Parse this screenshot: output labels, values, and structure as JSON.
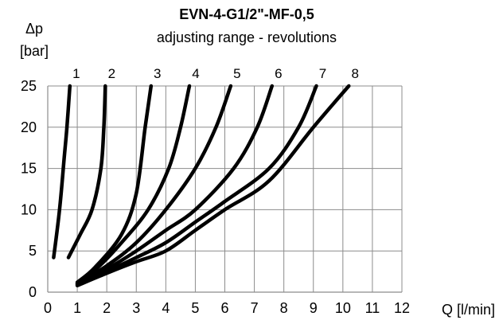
{
  "chart_data": {
    "type": "line",
    "title": "EVN-4-G1/2\"-MF-0,5",
    "subtitle": "adjusting range - revolutions",
    "xlabel": "Q [l/min]",
    "ylabel_line1": "Δp",
    "ylabel_line2": "[bar]",
    "xlim": [
      0,
      12
    ],
    "ylim": [
      0,
      25
    ],
    "xticks": [
      "0",
      "1",
      "2",
      "3",
      "4",
      "5",
      "6",
      "7",
      "8",
      "9",
      "10",
      "11",
      "12"
    ],
    "yticks": [
      "0",
      "5",
      "10",
      "15",
      "20",
      "25"
    ],
    "grid": true,
    "series": [
      {
        "name": "1",
        "points": [
          [
            0.2,
            4.2
          ],
          [
            0.4,
            10
          ],
          [
            0.55,
            16
          ],
          [
            0.65,
            20
          ],
          [
            0.75,
            25
          ]
        ]
      },
      {
        "name": "2",
        "points": [
          [
            0.7,
            4.2
          ],
          [
            1.1,
            7
          ],
          [
            1.5,
            10
          ],
          [
            1.8,
            15
          ],
          [
            1.9,
            20
          ],
          [
            1.95,
            25
          ]
        ]
      },
      {
        "name": "3",
        "points": [
          [
            1,
            1.2
          ],
          [
            1.6,
            3
          ],
          [
            2.5,
            7
          ],
          [
            3.0,
            12
          ],
          [
            3.3,
            20
          ],
          [
            3.5,
            25
          ]
        ]
      },
      {
        "name": "4",
        "points": [
          [
            1,
            1.1
          ],
          [
            1.7,
            3
          ],
          [
            2.5,
            6
          ],
          [
            3.4,
            10
          ],
          [
            4.1,
            15
          ],
          [
            4.5,
            20
          ],
          [
            4.8,
            25
          ]
        ]
      },
      {
        "name": "5",
        "points": [
          [
            1,
            1.0
          ],
          [
            2.0,
            3.2
          ],
          [
            3.0,
            6
          ],
          [
            4.0,
            10
          ],
          [
            5.0,
            15
          ],
          [
            5.7,
            20
          ],
          [
            6.2,
            25
          ]
        ]
      },
      {
        "name": "6",
        "points": [
          [
            1,
            1.0
          ],
          [
            2.0,
            2.8
          ],
          [
            3.0,
            5
          ],
          [
            4.0,
            7.5
          ],
          [
            5.0,
            10
          ],
          [
            6.3,
            15
          ],
          [
            7.1,
            20
          ],
          [
            7.6,
            25
          ]
        ]
      },
      {
        "name": "7",
        "points": [
          [
            1,
            0.9
          ],
          [
            2.0,
            2.5
          ],
          [
            3.0,
            4.2
          ],
          [
            4.0,
            6
          ],
          [
            5.0,
            8.5
          ],
          [
            6.0,
            11
          ],
          [
            7.5,
            15
          ],
          [
            8.5,
            20
          ],
          [
            9.1,
            25
          ]
        ]
      },
      {
        "name": "8",
        "points": [
          [
            1,
            0.8
          ],
          [
            2.0,
            2.3
          ],
          [
            3.0,
            3.7
          ],
          [
            4.0,
            5
          ],
          [
            5.0,
            7.5
          ],
          [
            6.0,
            10
          ],
          [
            7.5,
            13.5
          ],
          [
            9.0,
            20
          ],
          [
            10.2,
            25
          ]
        ]
      }
    ]
  }
}
